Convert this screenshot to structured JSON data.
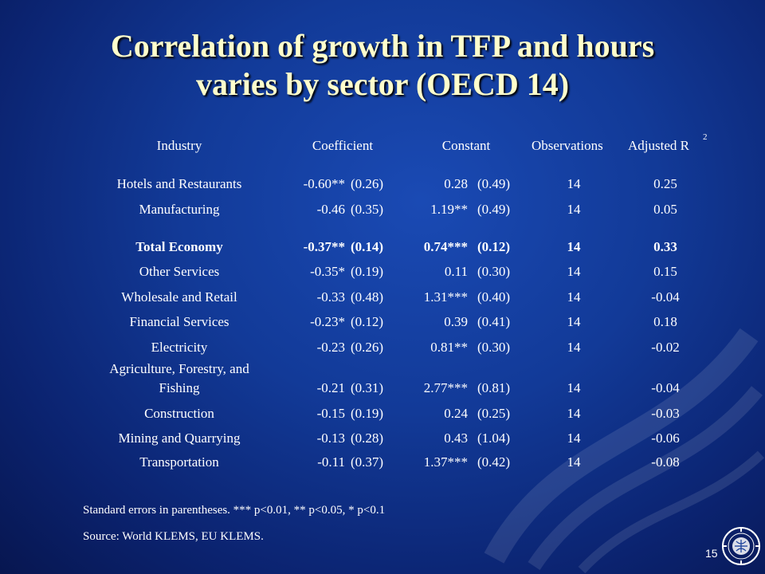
{
  "title": {
    "line1": "Correlation of growth in TFP and hours",
    "line2": "varies by sector (OECD 14)"
  },
  "table": {
    "headers": {
      "industry": "Industry",
      "coefficient": "Coefficient",
      "constant": "Constant",
      "observations": "Observations",
      "adjusted": "Adjusted R",
      "adjusted_sup": "2"
    },
    "rows": [
      {
        "industry": "Hotels and Restaurants",
        "coef": "-0.60**",
        "coef_se": "(0.26)",
        "const": "0.28",
        "const_se": "(0.49)",
        "obs": "14",
        "adj": "0.25"
      },
      {
        "industry": "Manufacturing",
        "coef": "-0.46",
        "coef_se": "(0.35)",
        "const": "1.19**",
        "const_se": "(0.49)",
        "obs": "14",
        "adj": "0.05"
      },
      {
        "industry": "Total Economy",
        "coef": "-0.37**",
        "coef_se": "(0.14)",
        "const": "0.74***",
        "const_se": "(0.12)",
        "obs": "14",
        "adj": "0.33"
      },
      {
        "industry": "Other Services",
        "coef": "-0.35*",
        "coef_se": "(0.19)",
        "const": "0.11",
        "const_se": "(0.30)",
        "obs": "14",
        "adj": "0.15"
      },
      {
        "industry": "Wholesale and Retail",
        "coef": "-0.33",
        "coef_se": "(0.48)",
        "const": "1.31***",
        "const_se": "(0.40)",
        "obs": "14",
        "adj": "-0.04"
      },
      {
        "industry": "Financial Services",
        "coef": "-0.23*",
        "coef_se": "(0.12)",
        "const": "0.39",
        "const_se": "(0.41)",
        "obs": "14",
        "adj": "0.18"
      },
      {
        "industry": "Electricity",
        "coef": "-0.23",
        "coef_se": "(0.26)",
        "const": "0.81**",
        "const_se": "(0.30)",
        "obs": "14",
        "adj": "-0.02"
      },
      {
        "industry_line1": "Agriculture, Forestry, and",
        "industry_line2": "Fishing",
        "coef": "-0.21",
        "coef_se": "(0.31)",
        "const": "2.77***",
        "const_se": "(0.81)",
        "obs": "14",
        "adj": "-0.04"
      },
      {
        "industry": "Construction",
        "coef": "-0.15",
        "coef_se": "(0.19)",
        "const": "0.24",
        "const_se": "(0.25)",
        "obs": "14",
        "adj": "-0.03"
      },
      {
        "industry": "Mining and Quarrying",
        "coef": "-0.13",
        "coef_se": "(0.28)",
        "const": "0.43",
        "const_se": "(1.04)",
        "obs": "14",
        "adj": "-0.06"
      },
      {
        "industry": "Transportation",
        "coef": "-0.11",
        "coef_se": "(0.37)",
        "const": "1.37***",
        "const_se": "(0.42)",
        "obs": "14",
        "adj": "-0.08"
      }
    ]
  },
  "notes": {
    "standard_errors": "Standard errors in parentheses. *** p<0.01, ** p<0.05, * p<0.1",
    "source": "Source: World KLEMS, EU KLEMS."
  },
  "page_number": "15",
  "logo_icon": "imf-seal-icon"
}
